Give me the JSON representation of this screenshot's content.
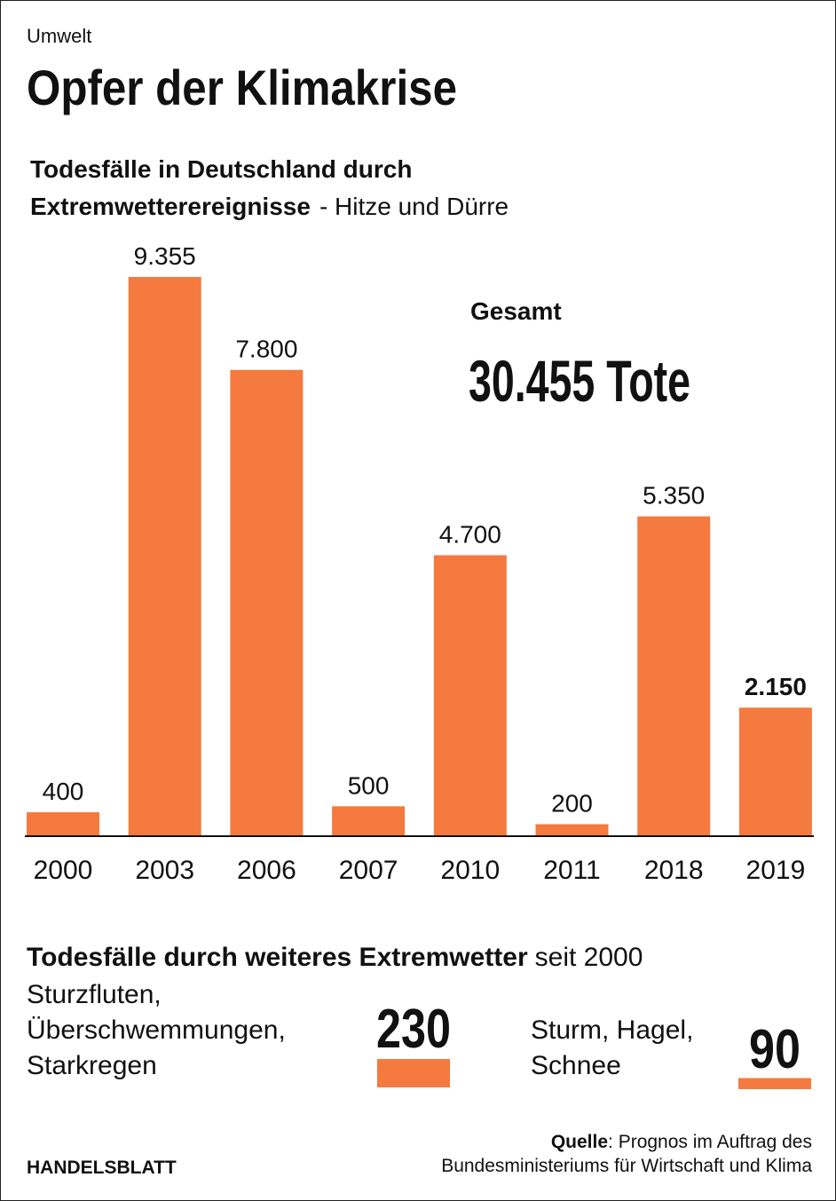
{
  "chart_data": {
    "type": "bar",
    "kicker": "Umwelt",
    "title": "Opfer der Klimakrise",
    "subtitle_lines": [
      "Todesfälle in Deutschland durch",
      "Extremwetterereignisse"
    ],
    "subtitle_suffix": "- Hitze und Dürre",
    "categories": [
      "2000",
      "2003",
      "2006",
      "2007",
      "2010",
      "2011",
      "2018",
      "2019"
    ],
    "values": [
      400,
      9355,
      7800,
      500,
      4700,
      200,
      5350,
      2150
    ],
    "value_labels": [
      "400",
      "9.355",
      "7.800",
      "500",
      "4.700",
      "200",
      "5.350",
      "2.150"
    ],
    "color": "#f47a3f",
    "total": {
      "label": "Gesamt",
      "text": "30.455 Tote"
    },
    "other": {
      "title": "Todesfälle durch weiteres Extremwetter",
      "title_suffix": "seit 2000",
      "items": [
        {
          "lines": [
            "Sturzfluten,",
            "Überschwemmungen,",
            "Starkregen"
          ],
          "value": 230
        },
        {
          "lines": [
            "Sturm, Hagel,",
            "Schnee"
          ],
          "value": 90
        }
      ]
    },
    "source": {
      "label": "Quelle",
      "lines": [
        ": Prognos im Auftrag des",
        "Bundesministeriums für Wirtschaft und Klima"
      ]
    },
    "brand": "HANDELSBLATT"
  }
}
